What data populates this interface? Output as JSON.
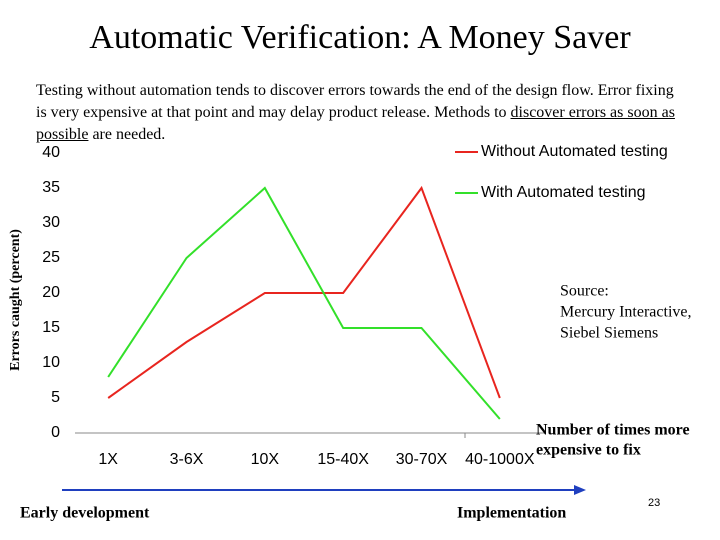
{
  "title": "Automatic Verification: A Money Saver",
  "paragraph": [
    "Testing without automation tends to discover errors towards the end of the design flow. Error fixing is very expensive at that point and may delay product release. Methods to ",
    "discover errors as soon as possible",
    " are needed."
  ],
  "chart_data": {
    "type": "line",
    "y_label": "Errors caught (percent)",
    "categories": [
      "1X",
      "3-6X",
      "10X",
      "15-40X",
      "30-70X",
      "40-1000X"
    ],
    "series": [
      {
        "name": "Without Automated testing",
        "color": "#e8251f",
        "values": [
          5,
          13,
          20,
          20,
          35,
          5
        ]
      },
      {
        "name": "With Automated testing",
        "color": "#33e02a",
        "values": [
          8,
          25,
          35,
          15,
          15,
          2
        ]
      }
    ],
    "ylim": [
      0,
      40
    ],
    "yticks": [
      0,
      5,
      10,
      15,
      20,
      25,
      30,
      35,
      40
    ],
    "legend": "top-right"
  },
  "source": [
    "Source:",
    "Mercury Interactive,",
    "Siebel Siemens"
  ],
  "cost_note": [
    "Number of times more",
    "expensive to fix"
  ],
  "arrow_start": "Early development",
  "arrow_end": "Implementation",
  "page_number": "23"
}
